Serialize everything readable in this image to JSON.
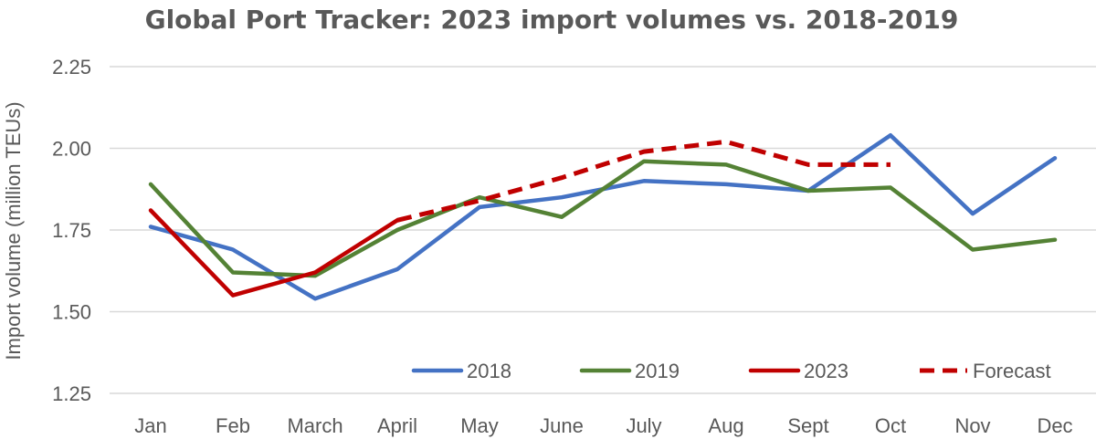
{
  "chart_data": {
    "type": "line",
    "title": "Global Port Tracker: 2023 import volumes vs. 2018-2019",
    "xlabel": "",
    "ylabel": "Import volume (million TEUs)",
    "ylim": [
      1.25,
      2.25
    ],
    "yticks": [
      "1.25",
      "1.50",
      "1.75",
      "2.00",
      "2.25"
    ],
    "yticks_values": [
      1.25,
      1.5,
      1.75,
      2.0,
      2.25
    ],
    "grid": true,
    "legend_position": "bottom-inside",
    "categories": [
      "Jan",
      "Feb",
      "March",
      "April",
      "May",
      "June",
      "July",
      "Aug",
      "Sept",
      "Oct",
      "Nov",
      "Dec"
    ],
    "series": [
      {
        "name": "2018",
        "color": "#4472c4",
        "style": "solid",
        "values": [
          1.76,
          1.69,
          1.54,
          1.63,
          1.82,
          1.85,
          1.9,
          1.89,
          1.87,
          2.04,
          1.8,
          1.97
        ]
      },
      {
        "name": "2019",
        "color": "#548235",
        "style": "solid",
        "values": [
          1.89,
          1.62,
          1.61,
          1.75,
          1.85,
          1.79,
          1.96,
          1.95,
          1.87,
          1.88,
          1.69,
          1.72
        ]
      },
      {
        "name": "2023",
        "color": "#c00000",
        "style": "solid",
        "values": [
          1.81,
          1.55,
          1.62,
          1.78,
          null,
          null,
          null,
          null,
          null,
          null,
          null,
          null
        ]
      },
      {
        "name": "Forecast",
        "color": "#c00000",
        "style": "dashed",
        "values": [
          null,
          null,
          null,
          1.78,
          1.84,
          1.91,
          1.99,
          2.02,
          1.95,
          1.95,
          null,
          null
        ]
      }
    ]
  }
}
